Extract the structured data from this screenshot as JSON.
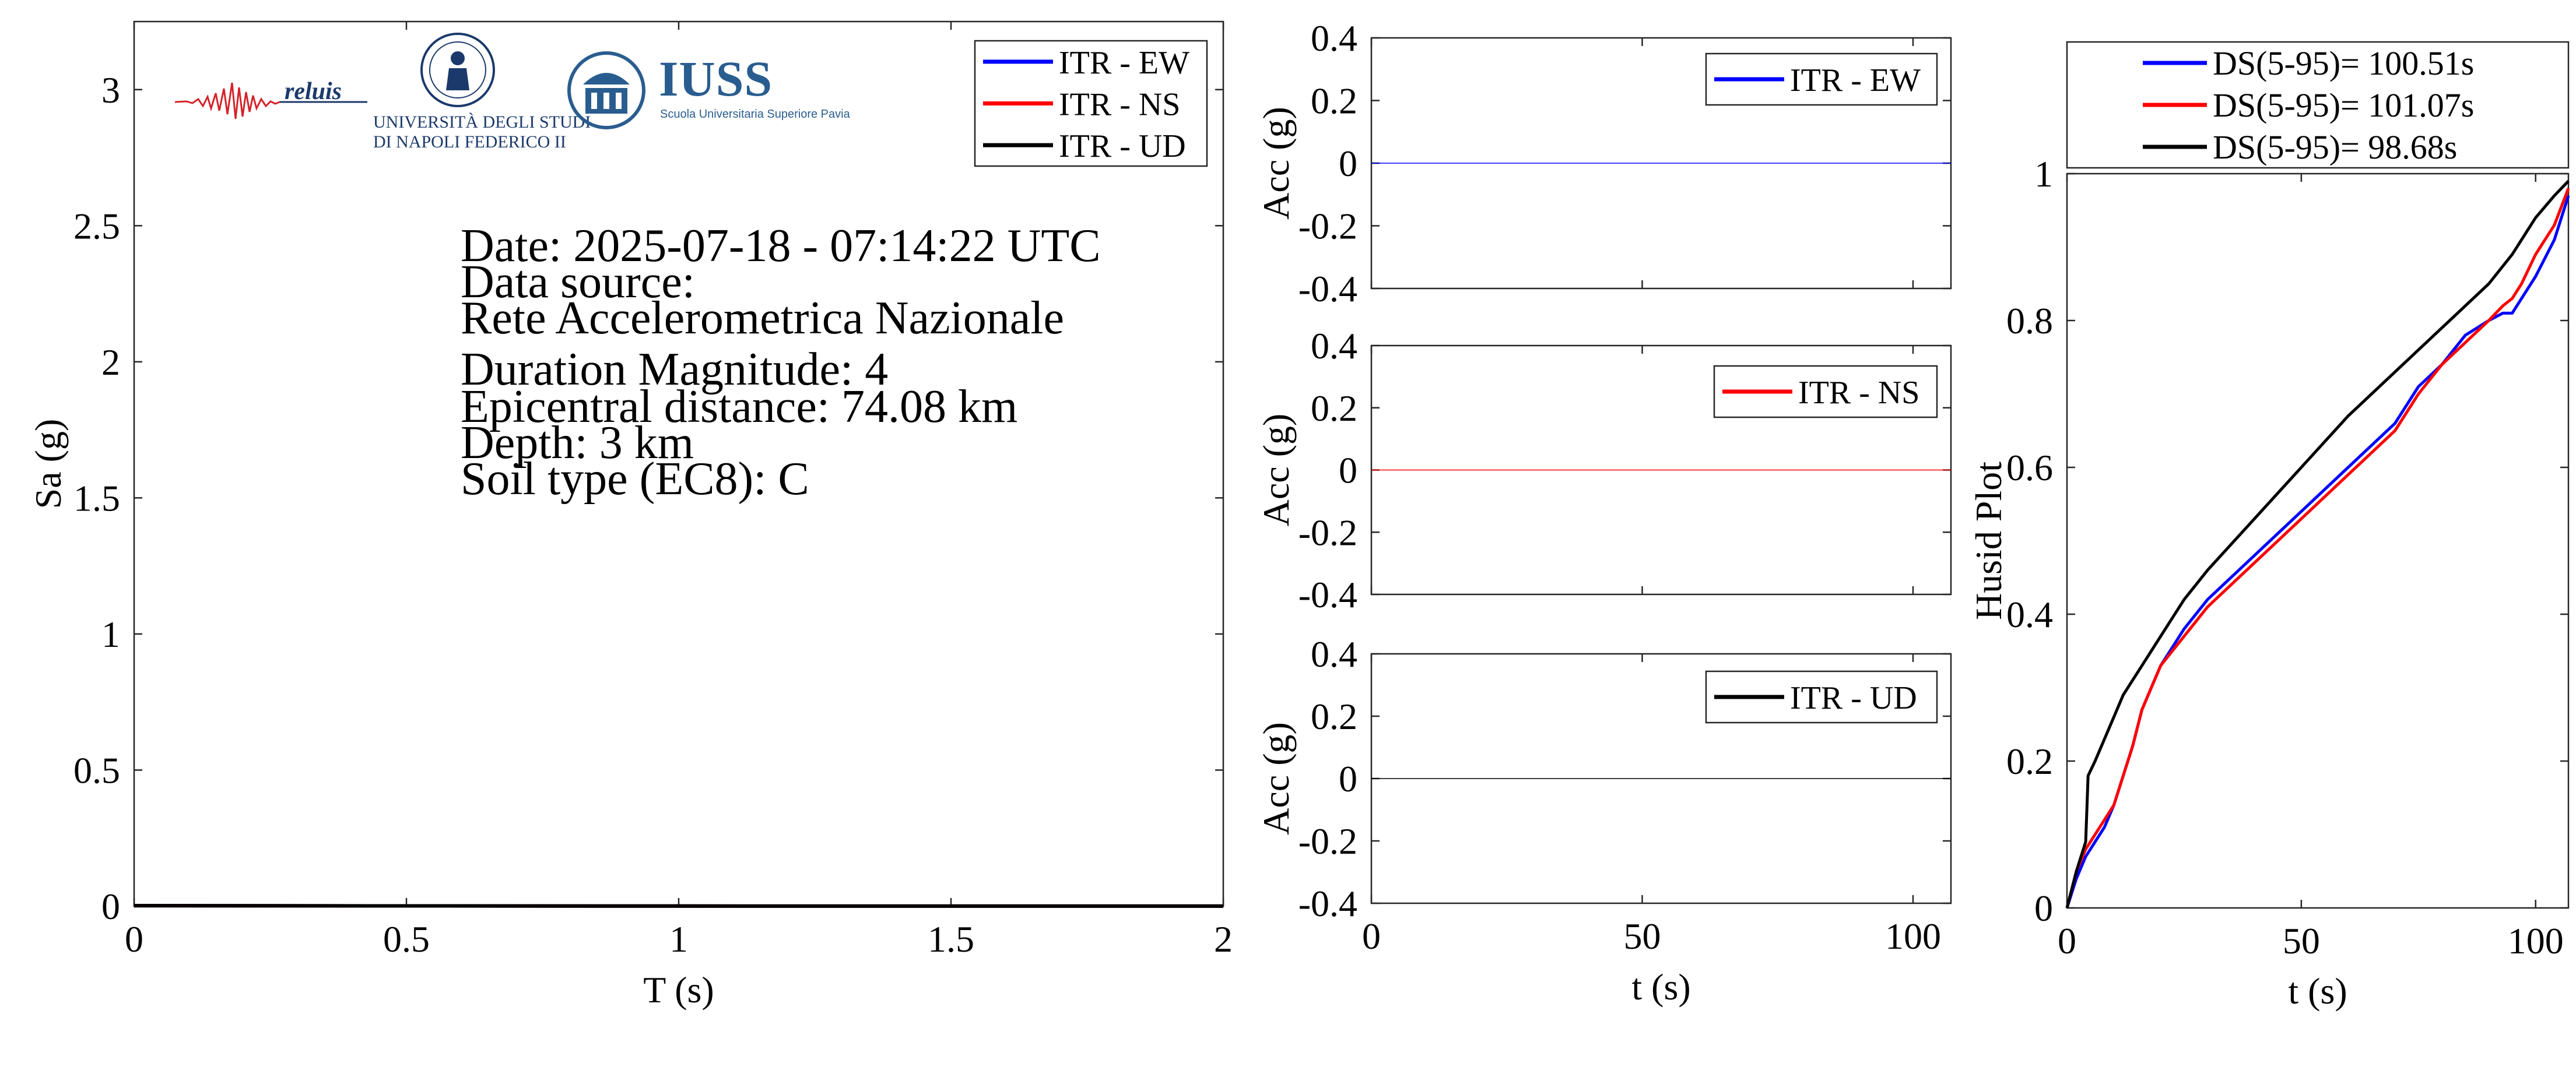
{
  "info": {
    "date": "Date: 2025-07-18 - 07:14:22 UTC",
    "data_source_label": "Data source:",
    "data_source": "Rete Accelerometrica Nazionale",
    "magnitude": "Duration Magnitude: 4",
    "epicentral_distance": "Epicentral distance: 74.08 km",
    "depth": "Depth: 3 km",
    "soil": "Soil type (EC8): C"
  },
  "logos": {
    "reluis": "reluis",
    "unina_line1": "UNIVERSITÀ DEGLI STUDI",
    "unina_line2": "DI NAPOLI FEDERICO II",
    "iuss_name": "IUSS",
    "iuss_tagline": "Scuola Universitaria Superiore Pavia"
  },
  "colors": {
    "ew": "#0000ff",
    "ns": "#ff0000",
    "ud": "#000000"
  },
  "chart_data": [
    {
      "id": "spectrum",
      "type": "line",
      "xlabel": "T (s)",
      "ylabel": "Sa (g)",
      "xlim": [
        0,
        2
      ],
      "ylim": [
        0,
        3.25
      ],
      "xticks": [
        0,
        0.5,
        1,
        1.5,
        2
      ],
      "xtick_labels": [
        "0",
        "0.5",
        "1",
        "1.5",
        "2"
      ],
      "yticks": [
        0,
        0.5,
        1,
        1.5,
        2,
        2.5,
        3
      ],
      "ytick_labels": [
        "0",
        "0.5",
        "1",
        "1.5",
        "2",
        "2.5",
        "3"
      ],
      "legend_position": "top-right",
      "series": [
        {
          "name": "ITR - EW",
          "color": "#0000ff",
          "x": [
            0,
            0.5,
            1,
            1.5,
            2
          ],
          "y": [
            0.002,
            0.001,
            0.0005,
            0.0003,
            0.0002
          ]
        },
        {
          "name": "ITR - NS",
          "color": "#ff0000",
          "x": [
            0,
            0.5,
            1,
            1.5,
            2
          ],
          "y": [
            0.002,
            0.001,
            0.0005,
            0.0003,
            0.0002
          ]
        },
        {
          "name": "ITR - UD",
          "color": "#000000",
          "x": [
            0,
            0.5,
            1,
            1.5,
            2
          ],
          "y": [
            0.002,
            0.001,
            0.0005,
            0.0003,
            0.0002
          ]
        }
      ]
    },
    {
      "id": "acc_ew",
      "type": "line",
      "xlabel": "",
      "ylabel": "Acc (g)",
      "xlim": [
        0,
        107
      ],
      "ylim": [
        -0.4,
        0.4
      ],
      "xticks": [
        0,
        50,
        100
      ],
      "xtick_labels": [
        "",
        "",
        ""
      ],
      "yticks": [
        -0.4,
        -0.2,
        0,
        0.2,
        0.4
      ],
      "ytick_labels": [
        "-0.4",
        "-0.2",
        "0",
        "0.2",
        "0.4"
      ],
      "legend_position": "top-right",
      "series": [
        {
          "name": "ITR - EW",
          "color": "#0000ff",
          "x": [
            0,
            107
          ],
          "y": [
            0,
            0
          ]
        }
      ]
    },
    {
      "id": "acc_ns",
      "type": "line",
      "xlabel": "",
      "ylabel": "Acc (g)",
      "xlim": [
        0,
        107
      ],
      "ylim": [
        -0.4,
        0.4
      ],
      "xticks": [
        0,
        50,
        100
      ],
      "xtick_labels": [
        "",
        "",
        ""
      ],
      "yticks": [
        -0.4,
        -0.2,
        0,
        0.2,
        0.4
      ],
      "ytick_labels": [
        "-0.4",
        "-0.2",
        "0",
        "0.2",
        "0.4"
      ],
      "legend_position": "top-right",
      "series": [
        {
          "name": "ITR - NS",
          "color": "#ff0000",
          "x": [
            0,
            107
          ],
          "y": [
            0,
            0
          ]
        }
      ]
    },
    {
      "id": "acc_ud",
      "type": "line",
      "xlabel": "t (s)",
      "ylabel": "Acc (g)",
      "xlim": [
        0,
        107
      ],
      "ylim": [
        -0.4,
        0.4
      ],
      "xticks": [
        0,
        50,
        100
      ],
      "xtick_labels": [
        "0",
        "50",
        "100"
      ],
      "yticks": [
        -0.4,
        -0.2,
        0,
        0.2,
        0.4
      ],
      "ytick_labels": [
        "-0.4",
        "-0.2",
        "0",
        "0.2",
        "0.4"
      ],
      "legend_position": "top-right",
      "series": [
        {
          "name": "ITR - UD",
          "color": "#000000",
          "x": [
            0,
            107
          ],
          "y": [
            0,
            0
          ]
        }
      ]
    },
    {
      "id": "husid",
      "type": "line",
      "xlabel": "t (s)",
      "ylabel": "Husid Plot",
      "xlim": [
        0,
        107
      ],
      "ylim": [
        0,
        1
      ],
      "xticks": [
        0,
        50,
        100
      ],
      "xtick_labels": [
        "0",
        "50",
        "100"
      ],
      "yticks": [
        0,
        0.2,
        0.4,
        0.6,
        0.8,
        1
      ],
      "ytick_labels": [
        "0",
        "0.2",
        "0.4",
        "0.6",
        "0.8",
        "1"
      ],
      "legend_position": "top (outside)",
      "series": [
        {
          "name": "DS(5-95)= 100.51s",
          "color": "#0000ff",
          "x": [
            0,
            2,
            4,
            6,
            8,
            10,
            12,
            14,
            16,
            20,
            25,
            30,
            40,
            50,
            60,
            70,
            75,
            80,
            85,
            90,
            93,
            95,
            97,
            100,
            104,
            107
          ],
          "y": [
            0,
            0.04,
            0.07,
            0.09,
            0.11,
            0.14,
            0.18,
            0.22,
            0.27,
            0.33,
            0.38,
            0.42,
            0.48,
            0.54,
            0.6,
            0.66,
            0.71,
            0.74,
            0.78,
            0.8,
            0.81,
            0.81,
            0.83,
            0.86,
            0.91,
            0.97
          ]
        },
        {
          "name": "DS(5-95)= 101.07s",
          "color": "#ff0000",
          "x": [
            0,
            2,
            4,
            6,
            8,
            10,
            12,
            14,
            16,
            20,
            25,
            30,
            40,
            50,
            60,
            70,
            75,
            80,
            85,
            90,
            93,
            95,
            97,
            100,
            104,
            107
          ],
          "y": [
            0,
            0.05,
            0.08,
            0.1,
            0.12,
            0.14,
            0.18,
            0.22,
            0.27,
            0.33,
            0.37,
            0.41,
            0.47,
            0.53,
            0.59,
            0.65,
            0.7,
            0.74,
            0.77,
            0.8,
            0.82,
            0.83,
            0.85,
            0.89,
            0.93,
            0.98
          ]
        },
        {
          "name": "DS(5-95)= 98.68s",
          "color": "#000000",
          "x": [
            0,
            2,
            3,
            4,
            4.5,
            6,
            8,
            10,
            12,
            14,
            16,
            20,
            25,
            30,
            40,
            50,
            60,
            70,
            80,
            90,
            95,
            100,
            104,
            107
          ],
          "y": [
            0,
            0.05,
            0.07,
            0.09,
            0.18,
            0.2,
            0.23,
            0.26,
            0.29,
            0.31,
            0.33,
            0.37,
            0.42,
            0.46,
            0.53,
            0.6,
            0.67,
            0.73,
            0.79,
            0.85,
            0.89,
            0.94,
            0.97,
            0.99
          ]
        }
      ]
    }
  ]
}
